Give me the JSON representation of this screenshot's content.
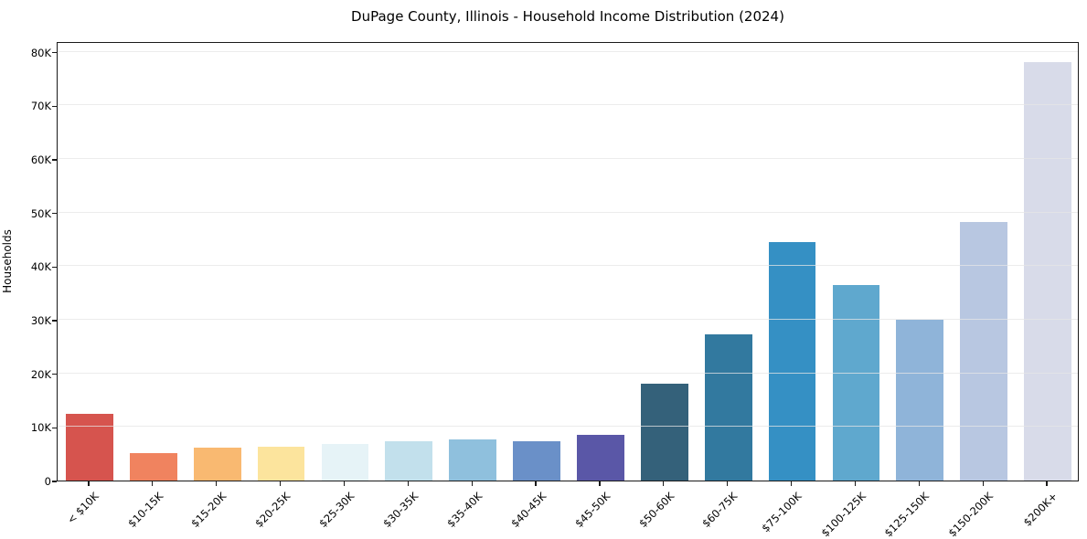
{
  "chart_data": {
    "type": "bar",
    "title": "DuPage County, Illinois - Household Income Distribution (2024)",
    "ylabel": "Households",
    "xlabel": "",
    "categories": [
      "< $10K",
      "$10-15K",
      "$15-20K",
      "$20-25K",
      "$25-30K",
      "$30-35K",
      "$35-40K",
      "$40-45K",
      "$45-50K",
      "$50-60K",
      "$60-75K",
      "$75-100K",
      "$100-125K",
      "$125-150K",
      "$150-200K",
      "$200K+"
    ],
    "values": [
      12500,
      5100,
      6200,
      6300,
      6800,
      7300,
      7600,
      7400,
      8600,
      18000,
      27200,
      44500,
      36500,
      30000,
      48300,
      78100
    ],
    "bar_colors": [
      "#d6544e",
      "#f0835f",
      "#f9b971",
      "#fce49d",
      "#e6f3f7",
      "#c2e0ec",
      "#8fc0dd",
      "#6a90c8",
      "#5a57a7",
      "#34617a",
      "#32799f",
      "#3590c4",
      "#5fa8ce",
      "#8fb4d9",
      "#b8c7e1",
      "#d8dbe9"
    ],
    "ytick_values": [
      0,
      10000,
      20000,
      30000,
      40000,
      50000,
      60000,
      70000,
      80000
    ],
    "ytick_labels": [
      "0",
      "10K",
      "20K",
      "30K",
      "40K",
      "50K",
      "60K",
      "70K",
      "80K"
    ],
    "ylim": [
      0,
      82000
    ],
    "grid": "horizontal-only",
    "legend_position": "none",
    "bar_width_fraction": 0.74
  }
}
